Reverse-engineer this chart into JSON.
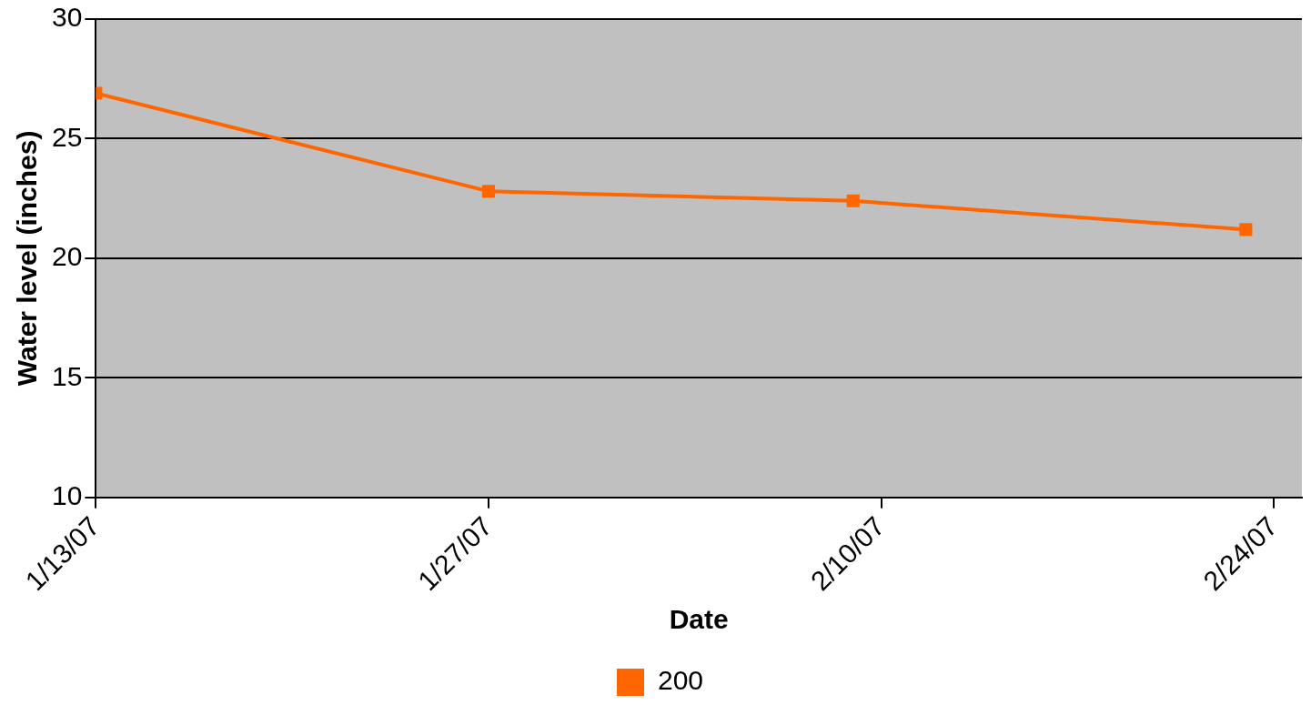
{
  "chart_data": {
    "type": "line",
    "xlabel": "Date",
    "ylabel": "Water level (inches)",
    "x": [
      "--01-13",
      "--01-27",
      "--02-09",
      "--02-23"
    ],
    "series": [
      {
        "name": "200",
        "color": "#ff6600",
        "values": [
          26.9,
          22.8,
          22.4,
          21.2
        ]
      }
    ],
    "xlim": [
      "--01-13",
      "--02-25"
    ],
    "xticks": [
      {
        "value": "--01-13",
        "label": "1/13/07"
      },
      {
        "value": "--01-27",
        "label": "1/27/07"
      },
      {
        "value": "--02-10",
        "label": "2/10/07"
      },
      {
        "value": "--02-24",
        "label": "2/24/07"
      }
    ],
    "ylim": [
      10,
      30
    ],
    "yticks": [
      10,
      15,
      20,
      25,
      30
    ],
    "grid": "y",
    "legend": "bottom",
    "marker": "square",
    "line_style": "solid"
  }
}
